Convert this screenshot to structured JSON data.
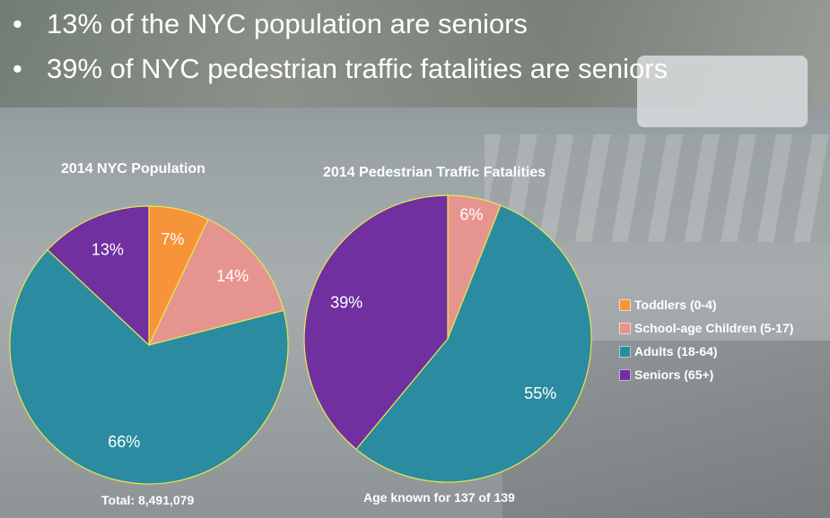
{
  "bullets": [
    "13% of the NYC population are seniors",
    "39% of NYC pedestrian traffic fatalities are seniors"
  ],
  "bullet_glyph": "•",
  "colors": {
    "toddlers": "#f7943a",
    "school_age": "#e6948f",
    "adults": "#2b8ba1",
    "seniors": "#7030a0",
    "slice_border": "#e8e84a"
  },
  "chart_data": [
    {
      "type": "pie",
      "title": "2014 NYC Population",
      "note": "Total: 8,491,079",
      "categories": [
        "Toddlers (0-4)",
        "School-age Children (5-17)",
        "Adults (18-64)",
        "Seniors (65+)"
      ],
      "values": [
        7,
        14,
        66,
        13
      ],
      "labels": [
        "7%",
        "14%",
        "66%",
        "13%"
      ]
    },
    {
      "type": "pie",
      "title": "2014 Pedestrian Traffic Fatalities",
      "note": "Age known for 137 of 139",
      "categories": [
        "Toddlers (0-4)",
        "School-age Children (5-17)",
        "Adults (18-64)",
        "Seniors (65+)"
      ],
      "values": [
        0,
        6,
        55,
        39
      ],
      "labels": [
        "",
        "6%",
        "55%",
        "39%"
      ]
    }
  ],
  "legend": [
    {
      "label": "Toddlers (0-4)",
      "color": "#f7943a"
    },
    {
      "label": "School-age Children (5-17)",
      "color": "#e6948f"
    },
    {
      "label": "Adults (18-64)",
      "color": "#2b8ba1"
    },
    {
      "label": "Seniors (65+)",
      "color": "#7030a0"
    }
  ]
}
